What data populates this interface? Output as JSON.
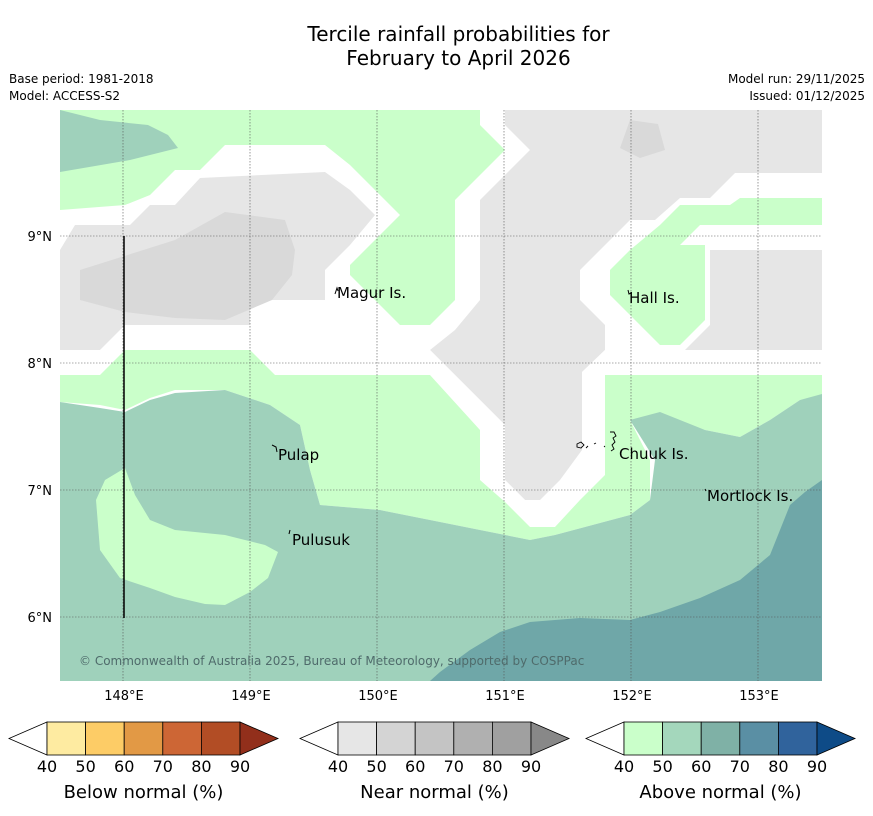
{
  "title": {
    "line1": "Tercile rainfall probabilities for",
    "line2": "February to April 2026"
  },
  "meta": {
    "base_period": "Base period: 1981-2018",
    "model": "Model: ACCESS-S2",
    "model_run": "Model run: 29/11/2025",
    "issued": "Issued: 01/12/2025"
  },
  "map": {
    "lat_labels": [
      "9°N",
      "8°N",
      "7°N",
      "6°N"
    ],
    "lon_labels": [
      "148°E",
      "149°E",
      "150°E",
      "151°E",
      "152°E",
      "153°E"
    ],
    "places": {
      "magur": "Magur Is.",
      "hall": "Hall Is.",
      "pulap": "Pulap",
      "chuuk": "Chuuk Is.",
      "mortlock": "Mortlock Is.",
      "pulusuk": "Pulusuk"
    },
    "copyright": "© Commonwealth of Australia 2025, Bureau of Meteorology, supported by COSPPac"
  },
  "legend": {
    "below": {
      "label": "Below normal (%)",
      "ticks": [
        "40",
        "50",
        "60",
        "70",
        "80",
        "90"
      ],
      "colors": [
        "#ffffff",
        "#feeba1",
        "#fdcc66",
        "#e29945",
        "#cd6635",
        "#b24d25",
        "#922f1b"
      ]
    },
    "near": {
      "label": "Near normal (%)",
      "ticks": [
        "40",
        "50",
        "60",
        "70",
        "80",
        "90"
      ],
      "colors": [
        "#ffffff",
        "#e6e6e6",
        "#d4d4d4",
        "#c4c4c4",
        "#b0b0b0",
        "#a0a0a0",
        "#888888"
      ]
    },
    "above": {
      "label": "Above normal (%)",
      "ticks": [
        "40",
        "50",
        "60",
        "70",
        "80",
        "90"
      ],
      "colors": [
        "#ffffff",
        "#caffca",
        "#a4d7bc",
        "#7fb1a6",
        "#5a8fa4",
        "#30639c",
        "#0e4b87"
      ]
    }
  }
}
